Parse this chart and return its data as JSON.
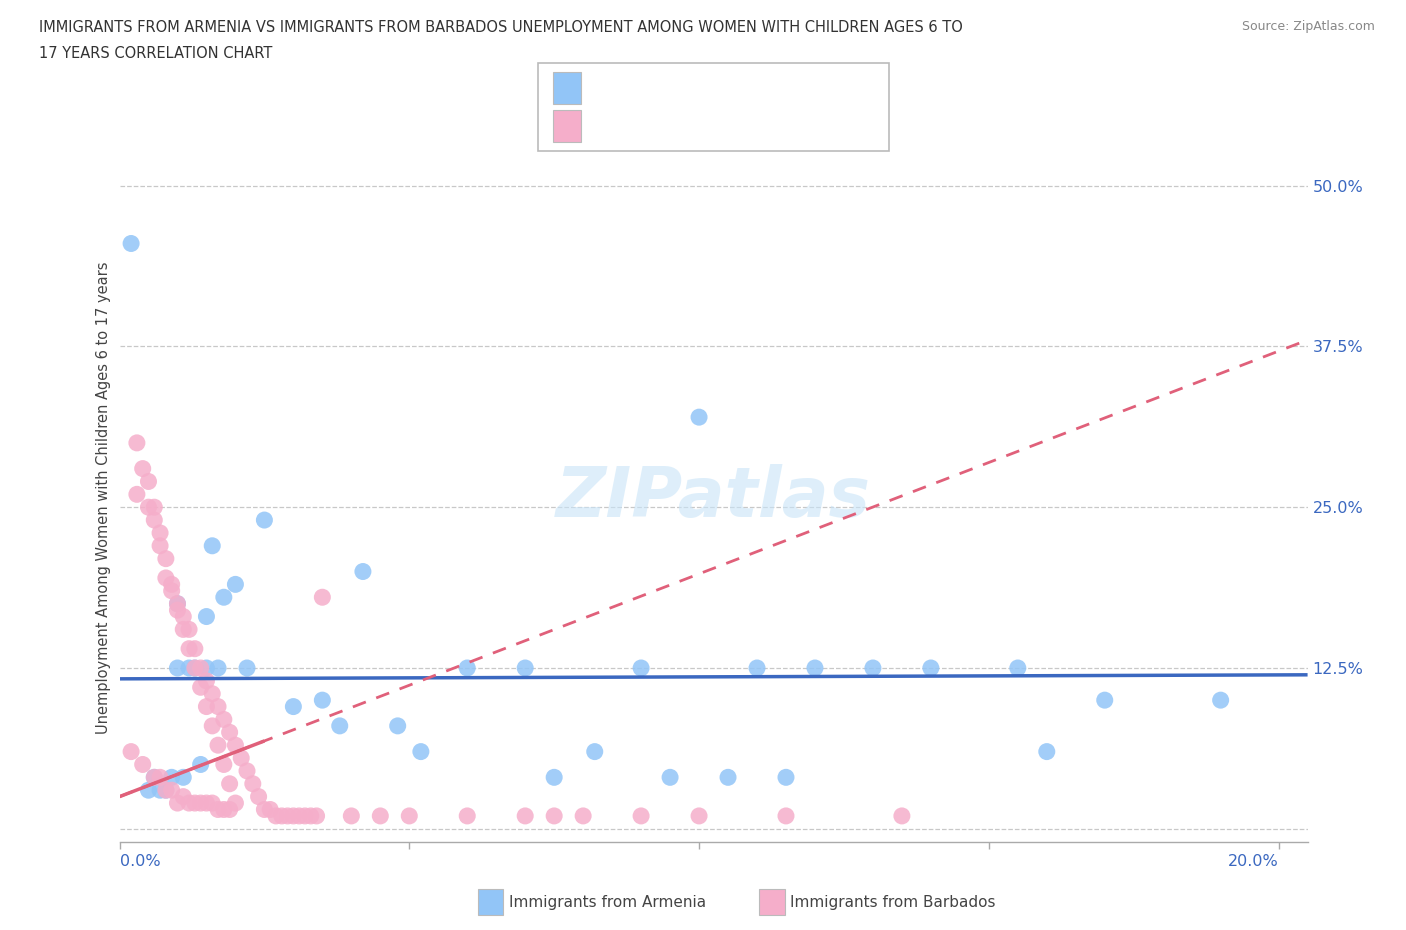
{
  "title_line1": "IMMIGRANTS FROM ARMENIA VS IMMIGRANTS FROM BARBADOS UNEMPLOYMENT AMONG WOMEN WITH CHILDREN AGES 6 TO",
  "title_line2": "17 YEARS CORRELATION CHART",
  "source": "Source: ZipAtlas.com",
  "ylabel": "Unemployment Among Women with Children Ages 6 to 17 years",
  "armenia_color": "#92C5F7",
  "barbados_color": "#F5AECA",
  "trend_armenia_color": "#3B68C0",
  "trend_barbados_color": "#E0607A",
  "xlim": [
    0.0,
    0.205
  ],
  "ylim": [
    -0.01,
    0.525
  ],
  "ytick_vals": [
    0.0,
    0.125,
    0.25,
    0.375,
    0.5
  ],
  "ytick_labels": [
    "",
    "12.5%",
    "25.0%",
    "37.5%",
    "50.0%"
  ],
  "armenia_x": [
    0.002,
    0.005,
    0.006,
    0.007,
    0.008,
    0.009,
    0.01,
    0.011,
    0.012,
    0.013,
    0.014,
    0.015,
    0.016,
    0.017,
    0.018,
    0.02,
    0.022,
    0.025,
    0.03,
    0.035,
    0.038,
    0.042,
    0.048,
    0.052,
    0.06,
    0.07,
    0.075,
    0.082,
    0.09,
    0.095,
    0.1,
    0.105,
    0.11,
    0.115,
    0.12,
    0.13,
    0.14,
    0.155,
    0.16,
    0.17,
    0.19,
    0.01,
    0.015
  ],
  "armenia_y": [
    0.455,
    0.03,
    0.04,
    0.03,
    0.03,
    0.04,
    0.125,
    0.04,
    0.125,
    0.125,
    0.05,
    0.125,
    0.22,
    0.125,
    0.18,
    0.19,
    0.125,
    0.24,
    0.095,
    0.1,
    0.08,
    0.2,
    0.08,
    0.06,
    0.125,
    0.125,
    0.04,
    0.06,
    0.125,
    0.04,
    0.32,
    0.04,
    0.125,
    0.04,
    0.125,
    0.125,
    0.125,
    0.125,
    0.06,
    0.1,
    0.1,
    0.175,
    0.165
  ],
  "barbados_x": [
    0.002,
    0.003,
    0.004,
    0.005,
    0.006,
    0.006,
    0.007,
    0.007,
    0.008,
    0.008,
    0.009,
    0.009,
    0.01,
    0.01,
    0.011,
    0.011,
    0.012,
    0.012,
    0.013,
    0.013,
    0.014,
    0.014,
    0.015,
    0.015,
    0.016,
    0.016,
    0.017,
    0.017,
    0.018,
    0.018,
    0.019,
    0.019,
    0.02,
    0.021,
    0.022,
    0.023,
    0.024,
    0.025,
    0.026,
    0.027,
    0.028,
    0.029,
    0.03,
    0.031,
    0.032,
    0.033,
    0.034,
    0.035,
    0.04,
    0.045,
    0.05,
    0.06,
    0.07,
    0.075,
    0.08,
    0.09,
    0.1,
    0.115,
    0.135,
    0.003,
    0.004,
    0.005,
    0.006,
    0.007,
    0.008,
    0.009,
    0.01,
    0.011,
    0.012,
    0.013,
    0.014,
    0.015,
    0.016,
    0.017,
    0.018,
    0.019,
    0.02
  ],
  "barbados_y": [
    0.06,
    0.26,
    0.05,
    0.25,
    0.24,
    0.04,
    0.22,
    0.04,
    0.195,
    0.03,
    0.185,
    0.03,
    0.175,
    0.02,
    0.165,
    0.025,
    0.155,
    0.02,
    0.14,
    0.02,
    0.125,
    0.02,
    0.115,
    0.02,
    0.105,
    0.02,
    0.095,
    0.015,
    0.085,
    0.015,
    0.075,
    0.015,
    0.065,
    0.055,
    0.045,
    0.035,
    0.025,
    0.015,
    0.015,
    0.01,
    0.01,
    0.01,
    0.01,
    0.01,
    0.01,
    0.01,
    0.01,
    0.18,
    0.01,
    0.01,
    0.01,
    0.01,
    0.01,
    0.01,
    0.01,
    0.01,
    0.01,
    0.01,
    0.01,
    0.3,
    0.28,
    0.27,
    0.25,
    0.23,
    0.21,
    0.19,
    0.17,
    0.155,
    0.14,
    0.125,
    0.11,
    0.095,
    0.08,
    0.065,
    0.05,
    0.035,
    0.02
  ]
}
